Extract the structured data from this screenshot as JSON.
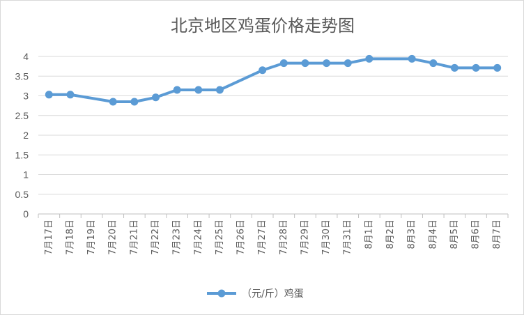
{
  "chart_data": {
    "type": "line",
    "title": "北京地区鸡蛋价格走势图",
    "xlabel": "",
    "ylabel": "",
    "categories": [
      "7月17日",
      "7月18日",
      "7月19日",
      "7月20日",
      "7月21日",
      "7月22日",
      "7月23日",
      "7月24日",
      "7月25日",
      "7月26日",
      "7月27日",
      "7月28日",
      "7月29日",
      "7月30日",
      "7月31日",
      "8月1日",
      "8月2日",
      "8月3日",
      "8月4日",
      "8月5日",
      "8月6日",
      "8月7日"
    ],
    "series": [
      {
        "name": "（元/斤）鸡蛋",
        "x": [
          "7月17日",
          "7月18日",
          "7月20日",
          "7月21日",
          "7月22日",
          "7月23日",
          "7月24日",
          "7月25日",
          "7月27日",
          "7月28日",
          "7月29日",
          "7月30日",
          "7月31日",
          "8月1日",
          "8月3日",
          "8月4日",
          "8月5日",
          "8月6日",
          "8月7日"
        ],
        "values": [
          3.03,
          3.03,
          2.85,
          2.85,
          2.96,
          3.15,
          3.15,
          3.15,
          3.65,
          3.83,
          3.83,
          3.83,
          3.83,
          3.94,
          3.94,
          3.83,
          3.71,
          3.71,
          3.71
        ],
        "color": "#5b9bd5"
      }
    ],
    "yticks": [
      "0",
      "0.5",
      "1",
      "1.5",
      "2",
      "2.5",
      "3",
      "3.5",
      "4"
    ],
    "ylim": [
      0,
      4
    ],
    "grid": true,
    "legend_position": "bottom"
  }
}
